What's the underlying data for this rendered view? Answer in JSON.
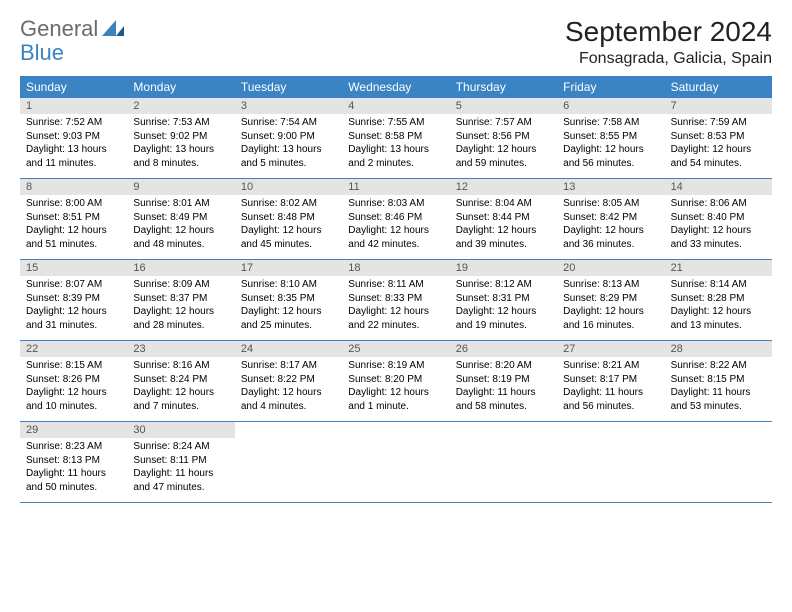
{
  "header": {
    "logo_word1": "General",
    "logo_word2": "Blue",
    "month_title": "September 2024",
    "location": "Fonsagrada, Galicia, Spain"
  },
  "colors": {
    "header_bar": "#3a84c4",
    "day_num_bg": "#e4e4e4",
    "logo_gray": "#6b6b6b",
    "logo_blue": "#3a84c4",
    "text": "#000000",
    "border": "#3a84c4"
  },
  "day_of_week": [
    "Sunday",
    "Monday",
    "Tuesday",
    "Wednesday",
    "Thursday",
    "Friday",
    "Saturday"
  ],
  "days": [
    {
      "n": "1",
      "sr": "7:52 AM",
      "ss": "9:03 PM",
      "dl": "13 hours and 11 minutes."
    },
    {
      "n": "2",
      "sr": "7:53 AM",
      "ss": "9:02 PM",
      "dl": "13 hours and 8 minutes."
    },
    {
      "n": "3",
      "sr": "7:54 AM",
      "ss": "9:00 PM",
      "dl": "13 hours and 5 minutes."
    },
    {
      "n": "4",
      "sr": "7:55 AM",
      "ss": "8:58 PM",
      "dl": "13 hours and 2 minutes."
    },
    {
      "n": "5",
      "sr": "7:57 AM",
      "ss": "8:56 PM",
      "dl": "12 hours and 59 minutes."
    },
    {
      "n": "6",
      "sr": "7:58 AM",
      "ss": "8:55 PM",
      "dl": "12 hours and 56 minutes."
    },
    {
      "n": "7",
      "sr": "7:59 AM",
      "ss": "8:53 PM",
      "dl": "12 hours and 54 minutes."
    },
    {
      "n": "8",
      "sr": "8:00 AM",
      "ss": "8:51 PM",
      "dl": "12 hours and 51 minutes."
    },
    {
      "n": "9",
      "sr": "8:01 AM",
      "ss": "8:49 PM",
      "dl": "12 hours and 48 minutes."
    },
    {
      "n": "10",
      "sr": "8:02 AM",
      "ss": "8:48 PM",
      "dl": "12 hours and 45 minutes."
    },
    {
      "n": "11",
      "sr": "8:03 AM",
      "ss": "8:46 PM",
      "dl": "12 hours and 42 minutes."
    },
    {
      "n": "12",
      "sr": "8:04 AM",
      "ss": "8:44 PM",
      "dl": "12 hours and 39 minutes."
    },
    {
      "n": "13",
      "sr": "8:05 AM",
      "ss": "8:42 PM",
      "dl": "12 hours and 36 minutes."
    },
    {
      "n": "14",
      "sr": "8:06 AM",
      "ss": "8:40 PM",
      "dl": "12 hours and 33 minutes."
    },
    {
      "n": "15",
      "sr": "8:07 AM",
      "ss": "8:39 PM",
      "dl": "12 hours and 31 minutes."
    },
    {
      "n": "16",
      "sr": "8:09 AM",
      "ss": "8:37 PM",
      "dl": "12 hours and 28 minutes."
    },
    {
      "n": "17",
      "sr": "8:10 AM",
      "ss": "8:35 PM",
      "dl": "12 hours and 25 minutes."
    },
    {
      "n": "18",
      "sr": "8:11 AM",
      "ss": "8:33 PM",
      "dl": "12 hours and 22 minutes."
    },
    {
      "n": "19",
      "sr": "8:12 AM",
      "ss": "8:31 PM",
      "dl": "12 hours and 19 minutes."
    },
    {
      "n": "20",
      "sr": "8:13 AM",
      "ss": "8:29 PM",
      "dl": "12 hours and 16 minutes."
    },
    {
      "n": "21",
      "sr": "8:14 AM",
      "ss": "8:28 PM",
      "dl": "12 hours and 13 minutes."
    },
    {
      "n": "22",
      "sr": "8:15 AM",
      "ss": "8:26 PM",
      "dl": "12 hours and 10 minutes."
    },
    {
      "n": "23",
      "sr": "8:16 AM",
      "ss": "8:24 PM",
      "dl": "12 hours and 7 minutes."
    },
    {
      "n": "24",
      "sr": "8:17 AM",
      "ss": "8:22 PM",
      "dl": "12 hours and 4 minutes."
    },
    {
      "n": "25",
      "sr": "8:19 AM",
      "ss": "8:20 PM",
      "dl": "12 hours and 1 minute."
    },
    {
      "n": "26",
      "sr": "8:20 AM",
      "ss": "8:19 PM",
      "dl": "11 hours and 58 minutes."
    },
    {
      "n": "27",
      "sr": "8:21 AM",
      "ss": "8:17 PM",
      "dl": "11 hours and 56 minutes."
    },
    {
      "n": "28",
      "sr": "8:22 AM",
      "ss": "8:15 PM",
      "dl": "11 hours and 53 minutes."
    },
    {
      "n": "29",
      "sr": "8:23 AM",
      "ss": "8:13 PM",
      "dl": "11 hours and 50 minutes."
    },
    {
      "n": "30",
      "sr": "8:24 AM",
      "ss": "8:11 PM",
      "dl": "11 hours and 47 minutes."
    }
  ],
  "labels": {
    "sunrise": "Sunrise:",
    "sunset": "Sunset:",
    "daylight": "Daylight:"
  }
}
